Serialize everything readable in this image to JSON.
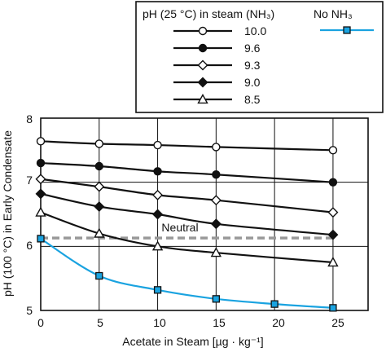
{
  "chart_data": {
    "type": "line",
    "xlabel": "Acetate in Steam [µg · kg⁻¹]",
    "ylabel": "pH (100 °C) in Early Condensate",
    "xlim": [
      0,
      28
    ],
    "ylim": [
      5,
      8
    ],
    "x_ticks": [
      "0",
      "5",
      "10",
      "15",
      "20",
      "25"
    ],
    "y_ticks": [
      "5",
      "6",
      "7",
      "8"
    ],
    "grid": true,
    "legend": {
      "title": "pH (25 °C) in steam (NH₃)",
      "placement": "top-right",
      "entries": [
        "10.0",
        "9.6",
        "9.3",
        "9.0",
        "8.5",
        "No NH₃"
      ]
    },
    "annotations": [
      {
        "text": "Neutral",
        "x": 12,
        "y": 6.13
      }
    ],
    "reference_line": {
      "name": "Neutral",
      "y": 6.13,
      "color": "#999999",
      "dashed": true
    },
    "series": [
      {
        "name": "10.0",
        "marker": "circle-open",
        "color": "#111111",
        "x": [
          0,
          5,
          10,
          15,
          25
        ],
        "y": [
          7.64,
          7.6,
          7.58,
          7.55,
          7.5
        ]
      },
      {
        "name": "9.6",
        "marker": "circle-filled",
        "color": "#111111",
        "x": [
          0,
          5,
          10,
          15,
          25
        ],
        "y": [
          7.3,
          7.25,
          7.17,
          7.12,
          7.0
        ]
      },
      {
        "name": "9.3",
        "marker": "diamond-open",
        "color": "#111111",
        "x": [
          0,
          5,
          10,
          15,
          25
        ],
        "y": [
          7.05,
          6.93,
          6.8,
          6.72,
          6.53
        ]
      },
      {
        "name": "9.0",
        "marker": "diamond-filled",
        "color": "#111111",
        "x": [
          0,
          5,
          10,
          15,
          25
        ],
        "y": [
          6.82,
          6.62,
          6.5,
          6.35,
          6.18
        ]
      },
      {
        "name": "8.5",
        "marker": "triangle-open",
        "color": "#111111",
        "x": [
          0,
          5,
          10,
          15,
          25
        ],
        "y": [
          6.53,
          6.2,
          6.0,
          5.9,
          5.75
        ]
      },
      {
        "name": "No NH₃",
        "marker": "square-filled",
        "color": "#1aa3e0",
        "x": [
          0,
          5,
          10,
          15,
          20,
          25
        ],
        "y": [
          6.12,
          5.54,
          5.32,
          5.18,
          5.1,
          5.04
        ]
      }
    ]
  }
}
